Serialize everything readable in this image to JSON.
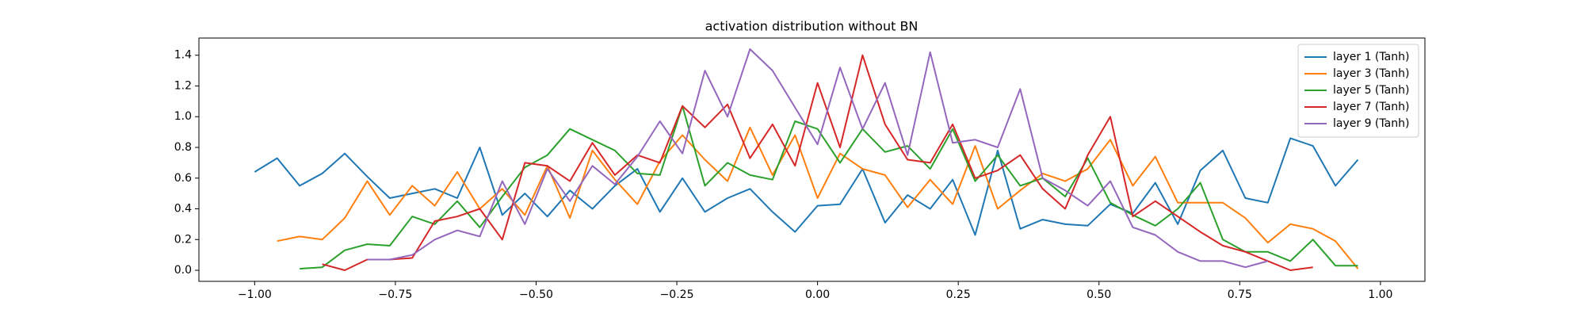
{
  "chart_data": {
    "type": "line",
    "title": "activation distribution without BN",
    "x": [
      -1,
      -0.96,
      -0.92,
      -0.88,
      -0.84,
      -0.8,
      -0.76,
      -0.72,
      -0.68,
      -0.64,
      -0.6,
      -0.56,
      -0.52,
      -0.48,
      -0.44,
      -0.4,
      -0.36,
      -0.32,
      -0.28,
      -0.24,
      -0.2,
      -0.16,
      -0.12,
      -0.08,
      -0.04,
      0,
      0.04,
      0.08,
      0.12,
      0.16,
      0.2,
      0.24,
      0.28,
      0.32,
      0.36,
      0.4,
      0.44,
      0.48,
      0.52,
      0.56,
      0.6,
      0.64,
      0.68,
      0.72,
      0.76,
      0.8,
      0.84,
      0.88,
      0.92,
      0.96
    ],
    "series": [
      {
        "name": "layer 1 (Tanh)",
        "color": "#1f77b4",
        "values": [
          0.64,
          0.73,
          0.55,
          0.63,
          0.76,
          0.61,
          0.47,
          0.5,
          0.53,
          0.47,
          0.8,
          0.36,
          0.5,
          0.35,
          0.52,
          0.4,
          0.55,
          0.66,
          0.38,
          0.6,
          0.38,
          0.47,
          0.53,
          0.38,
          0.25,
          0.42,
          0.43,
          0.66,
          0.31,
          0.49,
          0.4,
          0.59,
          0.23,
          0.78,
          0.27,
          0.33,
          0.3,
          0.29,
          0.43,
          0.37,
          0.57,
          0.3,
          0.65,
          0.78,
          0.47,
          0.44,
          0.86,
          0.81,
          0.55,
          0.72
        ]
      },
      {
        "name": "layer 3 (Tanh)",
        "color": "#ff7f0e",
        "values": [
          null,
          0.19,
          0.22,
          0.2,
          0.34,
          0.58,
          0.36,
          0.55,
          0.42,
          0.64,
          0.4,
          0.53,
          0.36,
          0.68,
          0.34,
          0.78,
          0.59,
          0.43,
          0.71,
          0.88,
          0.72,
          0.58,
          0.93,
          0.62,
          0.88,
          0.47,
          0.76,
          0.66,
          0.62,
          0.41,
          0.59,
          0.43,
          0.81,
          0.4,
          0.52,
          0.63,
          0.58,
          0.66,
          0.85,
          0.55,
          0.74,
          0.44,
          0.44,
          0.44,
          0.34,
          0.18,
          0.3,
          0.27,
          0.19,
          0.01
        ]
      },
      {
        "name": "layer 5 (Tanh)",
        "color": "#2ca02c",
        "values": [
          null,
          null,
          0.01,
          0.02,
          0.13,
          0.17,
          0.16,
          0.35,
          0.3,
          0.45,
          0.28,
          0.48,
          0.67,
          0.75,
          0.92,
          0.85,
          0.78,
          0.63,
          0.62,
          1.07,
          0.55,
          0.7,
          0.62,
          0.59,
          0.97,
          0.92,
          0.7,
          0.92,
          0.77,
          0.81,
          0.66,
          0.92,
          0.58,
          0.75,
          0.55,
          0.6,
          0.48,
          0.73,
          0.44,
          0.36,
          0.29,
          0.4,
          0.57,
          0.2,
          0.12,
          0.12,
          0.06,
          0.2,
          0.03,
          0.03
        ]
      },
      {
        "name": "layer 7 (Tanh)",
        "color": "#d62728",
        "values": [
          null,
          null,
          null,
          0.04,
          0,
          0.07,
          0.07,
          0.08,
          0.32,
          0.35,
          0.4,
          0.2,
          0.7,
          0.68,
          0.58,
          0.83,
          0.62,
          0.75,
          0.7,
          1.07,
          0.93,
          1.08,
          0.73,
          0.95,
          0.68,
          1.22,
          0.8,
          1.4,
          0.95,
          0.72,
          0.7,
          0.95,
          0.6,
          0.65,
          0.75,
          0.53,
          0.4,
          0.75,
          1,
          0.35,
          0.45,
          0.35,
          0.25,
          0.16,
          0.12,
          0.06,
          0,
          0.02,
          null,
          null
        ]
      },
      {
        "name": "layer 9 (Tanh)",
        "color": "#9467bd",
        "values": [
          null,
          null,
          null,
          null,
          null,
          0.07,
          0.07,
          0.1,
          0.2,
          0.26,
          0.22,
          0.58,
          0.3,
          0.66,
          0.45,
          0.68,
          0.56,
          0.74,
          0.97,
          0.76,
          1.3,
          1,
          1.44,
          1.3,
          1.06,
          0.82,
          1.32,
          0.92,
          1.22,
          0.75,
          1.42,
          0.83,
          0.85,
          0.8,
          1.18,
          0.6,
          0.52,
          0.42,
          0.58,
          0.28,
          0.23,
          0.12,
          0.06,
          0.06,
          0.02,
          0.06,
          null,
          null,
          null,
          null
        ]
      }
    ],
    "xlim": [
      -1.099,
      1.079
    ],
    "ylim": [
      -0.072,
      1.512
    ],
    "xticks": [
      {
        "value": -1,
        "label": "−1.00"
      },
      {
        "value": -0.75,
        "label": "−0.75"
      },
      {
        "value": -0.5,
        "label": "−0.50"
      },
      {
        "value": -0.25,
        "label": "−0.25"
      },
      {
        "value": 0,
        "label": "0.00"
      },
      {
        "value": 0.25,
        "label": "0.25"
      },
      {
        "value": 0.5,
        "label": "0.50"
      },
      {
        "value": 0.75,
        "label": "0.75"
      },
      {
        "value": 1,
        "label": "1.00"
      }
    ],
    "yticks": [
      {
        "value": 0,
        "label": "0.0"
      },
      {
        "value": 0.2,
        "label": "0.2"
      },
      {
        "value": 0.4,
        "label": "0.4"
      },
      {
        "value": 0.6,
        "label": "0.6"
      },
      {
        "value": 0.8,
        "label": "0.8"
      },
      {
        "value": 1,
        "label": "1.0"
      },
      {
        "value": 1.2,
        "label": "1.2"
      },
      {
        "value": 1.4,
        "label": "1.4"
      }
    ],
    "legend": "upper right"
  }
}
